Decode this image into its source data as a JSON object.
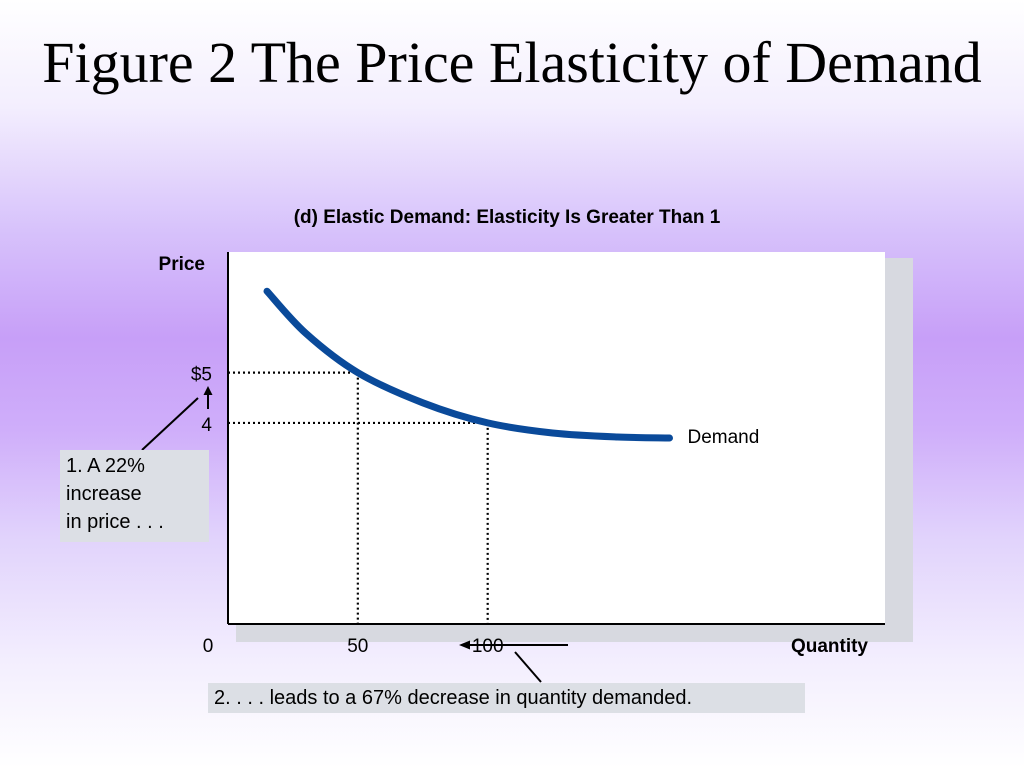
{
  "slide_title": "Figure 2 The Price Elasticity of Demand",
  "chart_data": {
    "type": "line",
    "title": "(d) Elastic Demand: Elasticity Is Greater Than 1",
    "xlabel": "Quantity",
    "ylabel": "Price",
    "x_ticks": [
      "0",
      "50",
      "100"
    ],
    "y_ticks": [
      "$5",
      "4"
    ],
    "series": [
      {
        "name": "Demand",
        "x": [
          15,
          30,
          50,
          75,
          100,
          125,
          150,
          170
        ],
        "y": [
          6.62,
          5.78,
          5.0,
          4.4,
          4.0,
          3.8,
          3.72,
          3.7
        ]
      }
    ],
    "reference_points": [
      {
        "x": 50,
        "y": 5
      },
      {
        "x": 100,
        "y": 4
      }
    ],
    "xlim": [
      0,
      253
    ],
    "ylim": [
      0,
      7.4
    ],
    "grid": false,
    "annotations": [
      "1. A 22% increase in price . . .",
      "2. . . . leads to a 67% decrease in quantity demanded."
    ],
    "colors": {
      "curve": "#0a4a9a",
      "axis": "#000000",
      "plot_bg": "#ffffff",
      "callout_bg": "#dcdfe5"
    }
  },
  "callouts": {
    "price_line1": "1. A 22%",
    "price_line2": "increase",
    "price_line3": "in price . . .",
    "quantity": "2. . . . leads to a 67% decrease in quantity demanded."
  }
}
